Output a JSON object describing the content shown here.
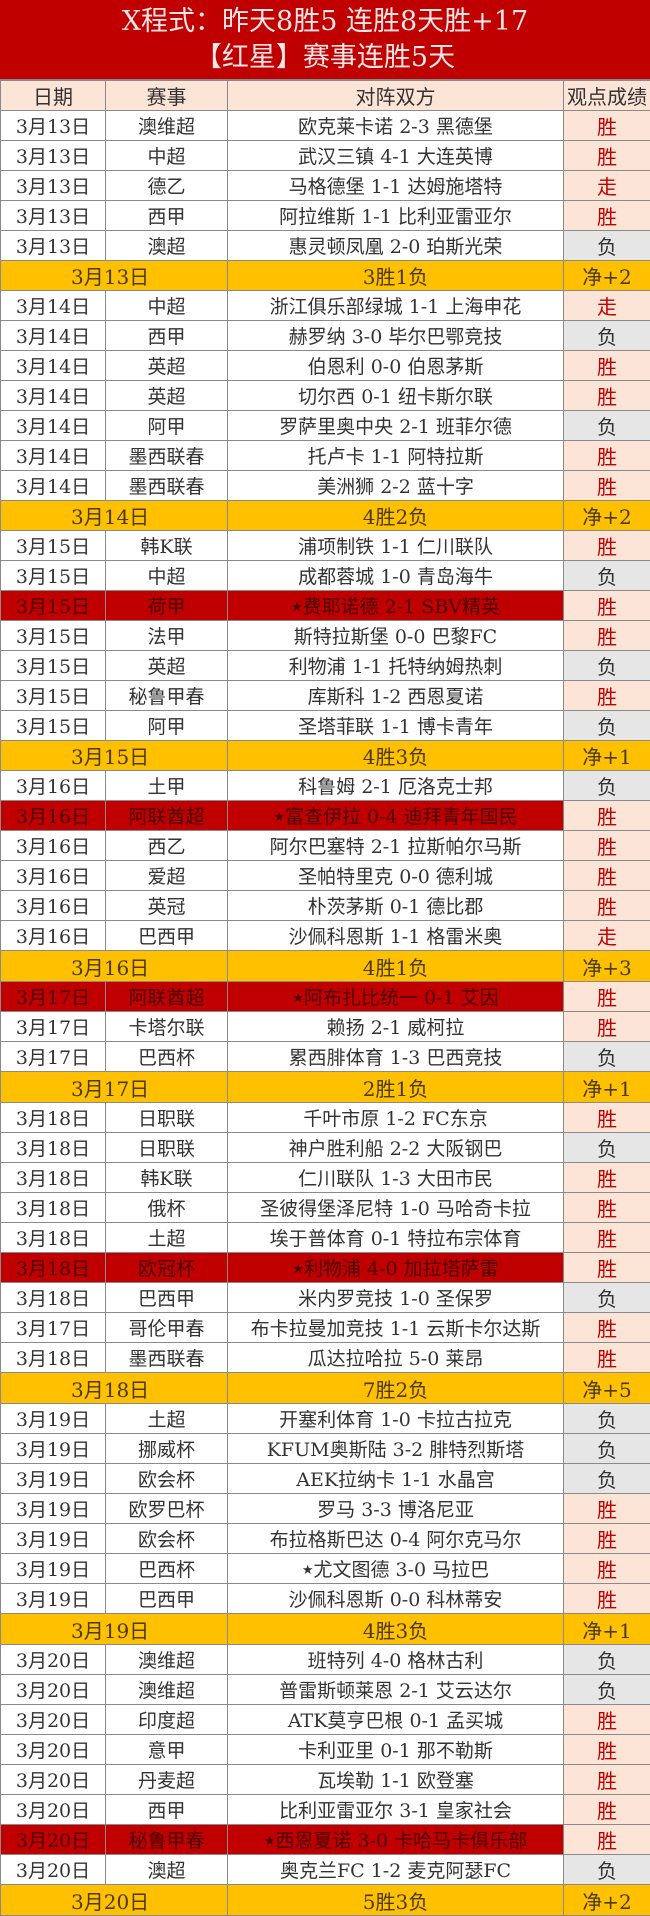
{
  "header": {
    "line1": "X程式：昨天8胜5 连胜8天胜+17",
    "line2": "【红星】赛事连胜5天"
  },
  "columns": [
    "日期",
    "赛事",
    "对阵双方",
    "观点成绩"
  ],
  "colors": {
    "title_bg": "#c00000",
    "summary_bg": "#ffc000",
    "win_bg": "#fce4d6",
    "win_text": "#c00000",
    "loss_bg": "#e7e6e6",
    "highlight_bg": "#c00000"
  },
  "days": [
    {
      "rows": [
        {
          "date": "3月13日",
          "league": "澳维超",
          "match": "欧克莱卡诺 2-3 黑德堡",
          "result": "胜"
        },
        {
          "date": "3月13日",
          "league": "中超",
          "match": "武汉三镇 4-1 大连英博",
          "result": "胜"
        },
        {
          "date": "3月13日",
          "league": "德乙",
          "match": "马格德堡 1-1 达姆施塔特",
          "result": "走"
        },
        {
          "date": "3月13日",
          "league": "西甲",
          "match": "阿拉维斯 1-1 比利亚雷亚尔",
          "result": "胜"
        },
        {
          "date": "3月13日",
          "league": "澳超",
          "match": "惠灵顿凤凰 2-0 珀斯光荣",
          "result": "负"
        }
      ],
      "summary": {
        "date": "3月13日",
        "record": "3胜1负",
        "net": "净+2"
      }
    },
    {
      "rows": [
        {
          "date": "3月14日",
          "league": "中超",
          "match": "浙江俱乐部绿城 1-1 上海申花",
          "result": "走"
        },
        {
          "date": "3月14日",
          "league": "西甲",
          "match": "赫罗纳 3-0 毕尔巴鄂竞技",
          "result": "负"
        },
        {
          "date": "3月14日",
          "league": "英超",
          "match": "伯恩利 0-0 伯恩茅斯",
          "result": "胜"
        },
        {
          "date": "3月14日",
          "league": "英超",
          "match": "切尔西 0-1 纽卡斯尔联",
          "result": "胜"
        },
        {
          "date": "3月14日",
          "league": "阿甲",
          "match": "罗萨里奥中央 2-1 班菲尔德",
          "result": "负"
        },
        {
          "date": "3月14日",
          "league": "墨西联春",
          "match": "托卢卡 1-1 阿特拉斯",
          "result": "胜"
        },
        {
          "date": "3月14日",
          "league": "墨西联春",
          "match": "美洲狮 2-2 蓝十字",
          "result": "胜"
        }
      ],
      "summary": {
        "date": "3月14日",
        "record": "4胜2负",
        "net": "净+2"
      }
    },
    {
      "rows": [
        {
          "date": "3月15日",
          "league": "韩K联",
          "match": "浦项制铁 1-1 仁川联队",
          "result": "胜"
        },
        {
          "date": "3月15日",
          "league": "中超",
          "match": "成都蓉城 1-0 青岛海牛",
          "result": "负"
        },
        {
          "date": "3月15日",
          "league": "荷甲",
          "match": "费耶诺德 2-1 SBV精英",
          "result": "胜",
          "highlight": true,
          "star": true
        },
        {
          "date": "3月15日",
          "league": "法甲",
          "match": "斯特拉斯堡 0-0 巴黎FC",
          "result": "胜"
        },
        {
          "date": "3月15日",
          "league": "英超",
          "match": "利物浦 1-1 托特纳姆热刺",
          "result": "负"
        },
        {
          "date": "3月15日",
          "league": "秘鲁甲春",
          "match": "库斯科 1-2 西恩夏诺",
          "result": "胜"
        },
        {
          "date": "3月15日",
          "league": "阿甲",
          "match": "圣塔菲联 1-1 博卡青年",
          "result": "负"
        }
      ],
      "summary": {
        "date": "3月15日",
        "record": "4胜3负",
        "net": "净+1"
      }
    },
    {
      "rows": [
        {
          "date": "3月16日",
          "league": "土甲",
          "match": "科鲁姆 2-1 厄洛克士邦",
          "result": "负"
        },
        {
          "date": "3月16日",
          "league": "阿联酋超",
          "match": "富查伊拉 0-4 迪拜青年国民",
          "result": "胜",
          "highlight": true,
          "star": true
        },
        {
          "date": "3月16日",
          "league": "西乙",
          "match": "阿尔巴塞特 2-1 拉斯帕尔马斯",
          "result": "胜"
        },
        {
          "date": "3月16日",
          "league": "爱超",
          "match": "圣帕特里克 0-0 德利城",
          "result": "胜"
        },
        {
          "date": "3月16日",
          "league": "英冠",
          "match": "朴茨茅斯 0-1 德比郡",
          "result": "胜"
        },
        {
          "date": "3月16日",
          "league": "巴西甲",
          "match": "沙佩科恩斯 1-1 格雷米奥",
          "result": "走"
        }
      ],
      "summary": {
        "date": "3月16日",
        "record": "4胜1负",
        "net": "净+3"
      }
    },
    {
      "rows": [
        {
          "date": "3月17日",
          "league": "阿联酋超",
          "match": "阿布扎比统一 0-1 艾因",
          "result": "胜",
          "highlight": true,
          "star": true
        },
        {
          "date": "3月17日",
          "league": "卡塔尔联",
          "match": "赖扬 2-1 威柯拉",
          "result": "胜"
        },
        {
          "date": "3月17日",
          "league": "巴西杯",
          "match": "累西腓体育 1-3 巴西竞技",
          "result": "负"
        }
      ],
      "summary": {
        "date": "3月17日",
        "record": "2胜1负",
        "net": "净+1"
      }
    },
    {
      "rows": [
        {
          "date": "3月18日",
          "league": "日职联",
          "match": "千叶市原 1-2 FC东京",
          "result": "胜"
        },
        {
          "date": "3月18日",
          "league": "日职联",
          "match": "神户胜利船 2-2 大阪钢巴",
          "result": "负"
        },
        {
          "date": "3月18日",
          "league": "韩K联",
          "match": "仁川联队 1-3 大田市民",
          "result": "胜"
        },
        {
          "date": "3月18日",
          "league": "俄杯",
          "match": "圣彼得堡泽尼特 1-0 马哈奇卡拉",
          "result": "胜"
        },
        {
          "date": "3月18日",
          "league": "土超",
          "match": "埃于普体育 0-1 特拉布宗体育",
          "result": "胜"
        },
        {
          "date": "3月18日",
          "league": "欧冠杯",
          "match": "利物浦 4-0 加拉塔萨雷",
          "result": "胜",
          "highlight": true,
          "star": true
        },
        {
          "date": "3月18日",
          "league": "巴西甲",
          "match": "米内罗竞技 1-0 圣保罗",
          "result": "负"
        },
        {
          "date": "3月17日",
          "league": "哥伦甲春",
          "match": "布卡拉曼加竞技 1-1 云斯卡尔达斯",
          "result": "胜"
        },
        {
          "date": "3月18日",
          "league": "墨西联春",
          "match": "瓜达拉哈拉 5-0 莱昂",
          "result": "胜"
        }
      ],
      "summary": {
        "date": "3月18日",
        "record": "7胜2负",
        "net": "净+5"
      }
    },
    {
      "rows": [
        {
          "date": "3月19日",
          "league": "土超",
          "match": "开塞利体育 1-0 卡拉古拉克",
          "result": "负"
        },
        {
          "date": "3月19日",
          "league": "挪威杯",
          "match": "KFUM奥斯陆 3-2 腓特烈斯塔",
          "result": "负"
        },
        {
          "date": "3月19日",
          "league": "欧会杯",
          "match": "AEK拉纳卡 1-1 水晶宫",
          "result": "负"
        },
        {
          "date": "3月19日",
          "league": "欧罗巴杯",
          "match": "罗马 3-3 博洛尼亚",
          "result": "胜"
        },
        {
          "date": "3月19日",
          "league": "欧会杯",
          "match": "布拉格斯巴达 0-4 阿尔克马尔",
          "result": "胜"
        },
        {
          "date": "3月19日",
          "league": "巴西杯",
          "match": "尤文图德 3-0 马拉巴",
          "result": "胜",
          "star": true
        },
        {
          "date": "3月19日",
          "league": "巴西甲",
          "match": "沙佩科恩斯 0-0 科林蒂安",
          "result": "胜"
        }
      ],
      "summary": {
        "date": "3月19日",
        "record": "4胜3负",
        "net": "净+1"
      }
    },
    {
      "rows": [
        {
          "date": "3月20日",
          "league": "澳维超",
          "match": "班特列 4-0 格林古利",
          "result": "负"
        },
        {
          "date": "3月20日",
          "league": "澳维超",
          "match": "普雷斯顿莱恩 2-1 艾云达尔",
          "result": "负"
        },
        {
          "date": "3月20日",
          "league": "印度超",
          "match": "ATK莫亨巴根 0-1 孟买城",
          "result": "胜"
        },
        {
          "date": "3月20日",
          "league": "意甲",
          "match": "卡利亚里 0-1 那不勒斯",
          "result": "胜"
        },
        {
          "date": "3月20日",
          "league": "丹麦超",
          "match": "瓦埃勒 1-1 欧登塞",
          "result": "胜"
        },
        {
          "date": "3月20日",
          "league": "西甲",
          "match": "比利亚雷亚尔 3-1 皇家社会",
          "result": "胜"
        },
        {
          "date": "3月20日",
          "league": "秘鲁甲春",
          "match": "西恩夏诺 3-0 卡哈马卡俱乐部",
          "result": "胜",
          "highlight": true,
          "star": true
        },
        {
          "date": "3月20日",
          "league": "澳超",
          "match": "奥克兰FC 1-2 麦克阿瑟FC",
          "result": "负"
        }
      ],
      "summary": {
        "date": "3月20日",
        "record": "5胜3负",
        "net": "净+2"
      }
    }
  ]
}
